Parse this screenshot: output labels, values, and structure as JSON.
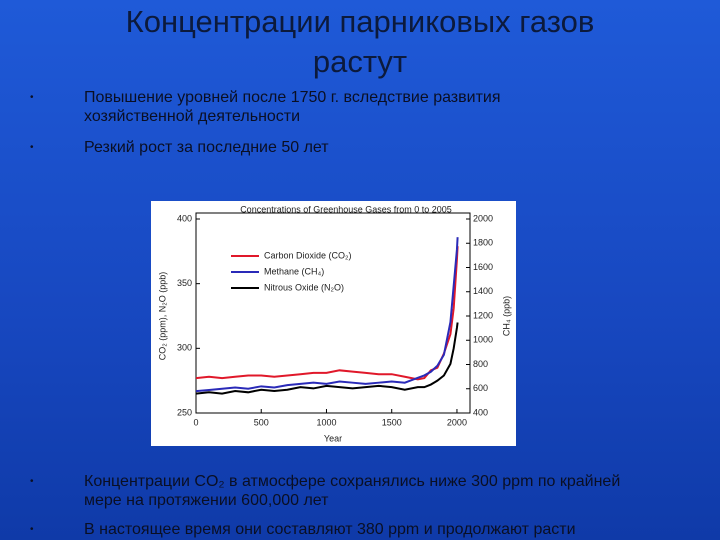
{
  "slide": {
    "title": "Концентрации парниковых газов растут",
    "bullets": [
      "Повышение уровней после 1750 г. вследствие развития хозяйственной деятельности",
      "Резкий рост за последние 50 лет",
      "Концентрации CO₂ в атмосфере сохранялись ниже 300 ppm по крайней мере на протяжении  600,000 лет",
      "В настоящее время они составляют 380 ppm и продолжают расти"
    ]
  },
  "chart_data": {
    "type": "line",
    "title": "Concentrations of Greenhouse Gases from 0 to 2005",
    "x_label": "Year",
    "y_label": "CO₂ (ppm), N₂O (ppb)",
    "y2_label": "CH₄ (ppb)",
    "x": [
      0,
      100,
      200,
      300,
      400,
      500,
      600,
      700,
      800,
      900,
      1000,
      1100,
      1200,
      1300,
      1400,
      1500,
      1600,
      1700,
      1750,
      1800,
      1850,
      1900,
      1950,
      1975,
      2000,
      2005
    ],
    "series": [
      {
        "name": "Carbon Dioxide (CO₂)",
        "color": "#e0182a",
        "values": [
          277,
          278,
          277,
          278,
          279,
          279,
          278,
          279,
          280,
          281,
          281,
          283,
          282,
          281,
          280,
          280,
          278,
          276,
          277,
          283,
          285,
          296,
          311,
          331,
          369,
          379
        ]
      },
      {
        "name": "Methane (CH₄)",
        "color": "#2a2ab8",
        "axis": "y2",
        "values": [
          580,
          590,
          600,
          610,
          600,
          620,
          610,
          630,
          640,
          650,
          640,
          660,
          650,
          640,
          650,
          660,
          650,
          690,
          710,
          740,
          790,
          880,
          1150,
          1450,
          1750,
          1850
        ]
      },
      {
        "name": "Nitrous Oxide (N₂O)",
        "color": "#000000",
        "values": [
          265,
          266,
          265,
          267,
          266,
          268,
          267,
          268,
          270,
          269,
          271,
          270,
          269,
          270,
          271,
          270,
          268,
          270,
          270,
          272,
          275,
          279,
          288,
          300,
          316,
          320
        ]
      }
    ],
    "xlim": [
      0,
      2100
    ],
    "xticks": [
      0,
      500,
      1000,
      1500,
      2000
    ],
    "ylim": [
      250,
      400
    ],
    "yticks": [
      250,
      300,
      350,
      400
    ],
    "y2lim": [
      400,
      2000
    ],
    "y2ticks": [
      400,
      600,
      800,
      1000,
      1200,
      1400,
      1600,
      1800,
      2000
    ],
    "legend": "upper left"
  }
}
